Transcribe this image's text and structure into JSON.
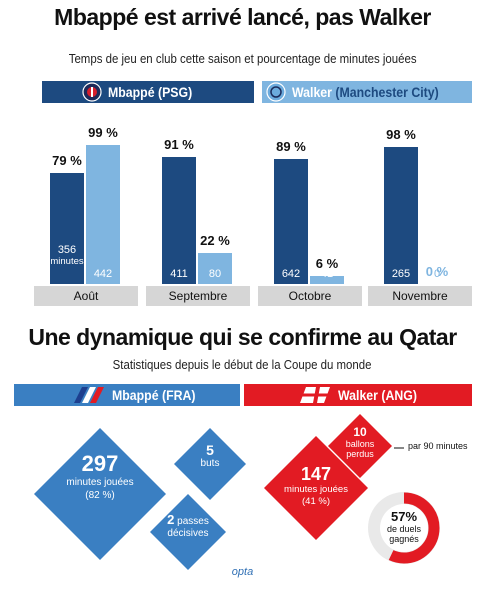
{
  "title": "Mbappé est arrivé lancé, pas Walker",
  "subtitle": "Temps de jeu en club cette saison et pourcentage de minutes jouées",
  "legend": {
    "mbappe": "Mbappé (PSG)",
    "walker_name": "Walker",
    "walker_club": "(Manchester City)"
  },
  "colors": {
    "mbappe": "#1d4a80",
    "walker": "#7fb5e0",
    "france": "#3a7fc2",
    "england": "#e21b23",
    "month_bg": "#d6d6d6"
  },
  "chart_data": {
    "type": "bar",
    "categories": [
      "Août",
      "Septembre",
      "Octobre",
      "Novembre"
    ],
    "series": [
      {
        "name": "Mbappé (PSG)",
        "minutes": [
          356,
          411,
          642,
          265
        ],
        "percent": [
          79,
          91,
          89,
          98
        ]
      },
      {
        "name": "Walker (Manchester City)",
        "minutes": [
          442,
          80,
          41,
          0
        ],
        "percent": [
          99,
          22,
          6,
          0
        ]
      }
    ],
    "minutes_unit_label": "minutes",
    "ylim": [
      0,
      100
    ]
  },
  "section2": {
    "title": "Une dynamique qui se confirme au Qatar",
    "subtitle": "Statistiques depuis le début de la Coupe du monde",
    "legend_fr": "Mbappé (FRA)",
    "legend_en": "Walker (ANG)",
    "mbappe": {
      "minutes": "297",
      "minutes_label": "minutes jouées",
      "minutes_pct": "(82 %)",
      "buts_value": "5",
      "buts_label": "buts",
      "passes_value": "2",
      "passes_label_1": "passes",
      "passes_label_2": "décisives"
    },
    "walker": {
      "minutes": "147",
      "minutes_label": "minutes jouées",
      "minutes_pct": "(41 %)",
      "ballons_value": "10",
      "ballons_label_1": "ballons",
      "ballons_label_2": "perdus",
      "per90": "par 90 minutes",
      "duels_value": "57%",
      "duels_label_1": "de duels",
      "duels_label_2": "gagnés",
      "duels_fraction": 0.57
    }
  },
  "source": "opta"
}
